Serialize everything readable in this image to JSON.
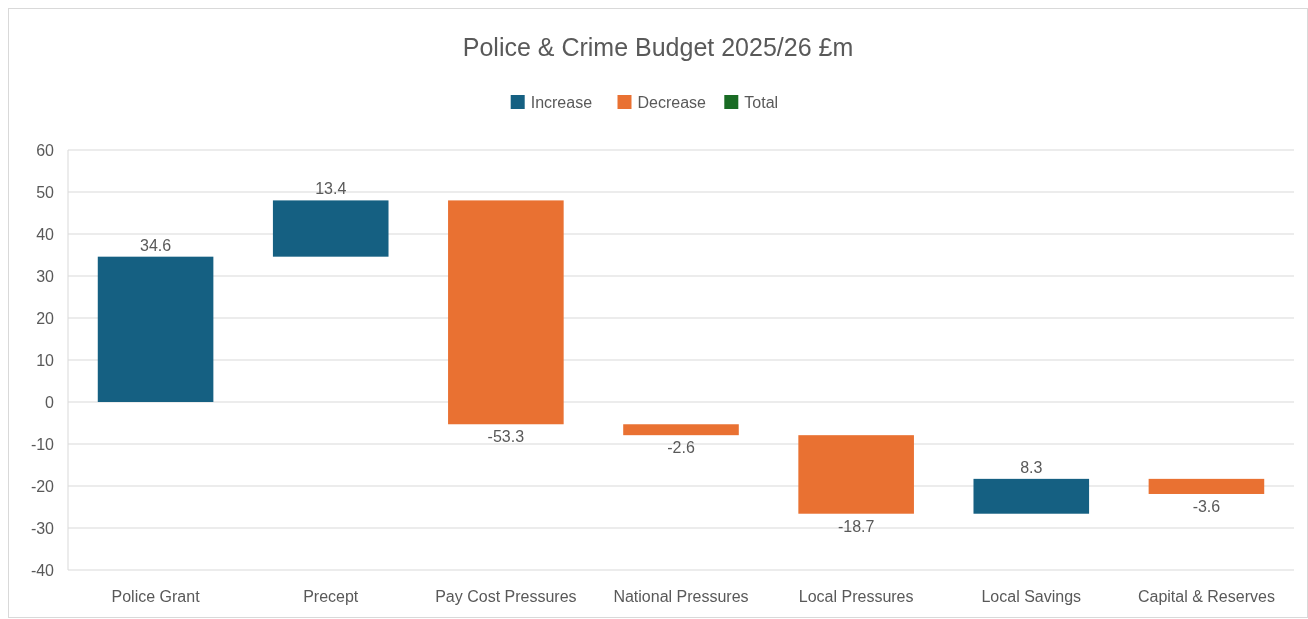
{
  "chart_data": {
    "type": "bar",
    "title": "Police & Crime Budget 2025/26 £m",
    "categories": [
      "Police Grant",
      "Precept",
      "Pay Cost Pressures",
      "National Pressures",
      "Local Pressures",
      "Local Savings",
      "Capital & Reserves"
    ],
    "series": [
      {
        "name": "Increase",
        "color": "#156082",
        "values": [
          34.6,
          13.4,
          null,
          null,
          null,
          8.3,
          null
        ],
        "base": [
          0,
          34.6,
          null,
          null,
          null,
          -26.6,
          null
        ]
      },
      {
        "name": "Decrease",
        "color": "#e97132",
        "values": [
          null,
          null,
          -53.3,
          -2.6,
          -18.7,
          null,
          -3.6
        ],
        "base": [
          null,
          null,
          48,
          -5.3,
          -7.9,
          null,
          -18.3
        ]
      },
      {
        "name": "Total",
        "color": "#196b24",
        "values": [
          null,
          null,
          null,
          null,
          null,
          null,
          null
        ]
      }
    ],
    "ylim": [
      -40,
      60
    ],
    "yticks": [
      -40,
      -30,
      -20,
      -10,
      0,
      10,
      20,
      30,
      40,
      50,
      60
    ],
    "grid": "y",
    "legend": "top",
    "data_labels": true
  }
}
